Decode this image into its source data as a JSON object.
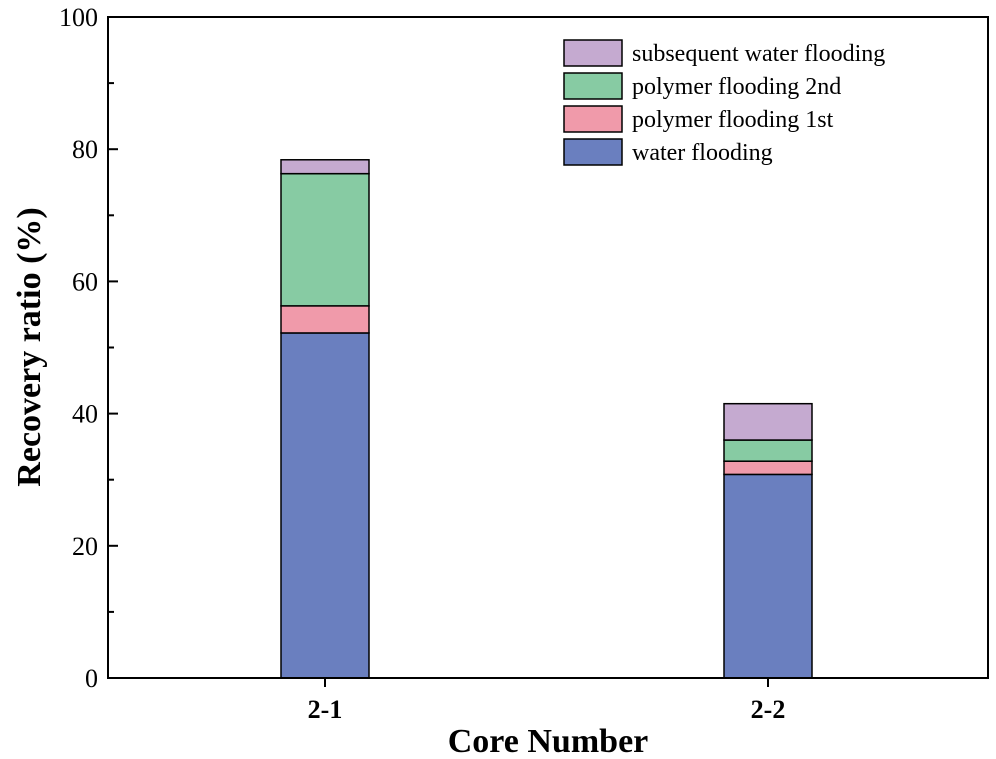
{
  "chart_data": {
    "type": "bar",
    "stacked": true,
    "title": "",
    "xlabel": "Core Number",
    "ylabel": "Recovery ratio (%)",
    "categories": [
      "2-1",
      "2-2"
    ],
    "ylim": [
      0,
      100
    ],
    "yticks": [
      0,
      20,
      40,
      60,
      80,
      100
    ],
    "ytick_labels": [
      "0",
      "20",
      "40",
      "60",
      "80",
      "100"
    ],
    "grid": false,
    "legend_position": "top-right",
    "series": [
      {
        "name": "water flooding",
        "color": "#6a7fbf",
        "values": [
          52.2,
          30.8
        ]
      },
      {
        "name": "polymer flooding 1st",
        "color": "#f09aaa",
        "values": [
          4.1,
          2.0
        ]
      },
      {
        "name": "polymer flooding 2nd",
        "color": "#87cba3",
        "values": [
          20.0,
          3.2
        ]
      },
      {
        "name": "subsequent water flooding",
        "color": "#c5aad0",
        "values": [
          2.1,
          5.5
        ]
      }
    ]
  }
}
